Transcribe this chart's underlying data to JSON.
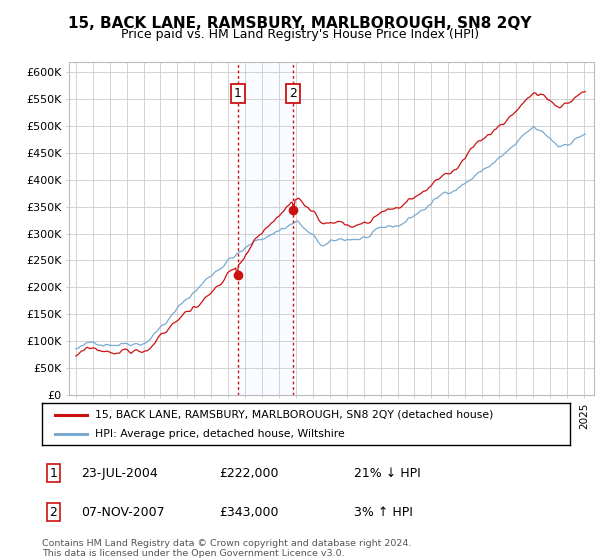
{
  "title": "15, BACK LANE, RAMSBURY, MARLBOROUGH, SN8 2QY",
  "subtitle": "Price paid vs. HM Land Registry's House Price Index (HPI)",
  "ylim": [
    0,
    620000
  ],
  "yticks": [
    0,
    50000,
    100000,
    150000,
    200000,
    250000,
    300000,
    350000,
    400000,
    450000,
    500000,
    550000,
    600000
  ],
  "ytick_labels": [
    "£0",
    "£50K",
    "£100K",
    "£150K",
    "£200K",
    "£250K",
    "£300K",
    "£350K",
    "£400K",
    "£450K",
    "£500K",
    "£550K",
    "£600K"
  ],
  "transaction1_date": 2004.554,
  "transaction2_date": 2007.838,
  "transaction1_price": 222000,
  "transaction2_price": 343000,
  "legend_line1": "15, BACK LANE, RAMSBURY, MARLBOROUGH, SN8 2QY (detached house)",
  "legend_line2": "HPI: Average price, detached house, Wiltshire",
  "footer": "Contains HM Land Registry data © Crown copyright and database right 2024.\nThis data is licensed under the Open Government Licence v3.0.",
  "hpi_color": "#7aaad0",
  "price_color": "#cc1111",
  "shade_color": "#ddeeff",
  "marker_box_color": "#cc1111",
  "grid_color": "#cccccc",
  "title_fontsize": 11,
  "subtitle_fontsize": 9
}
